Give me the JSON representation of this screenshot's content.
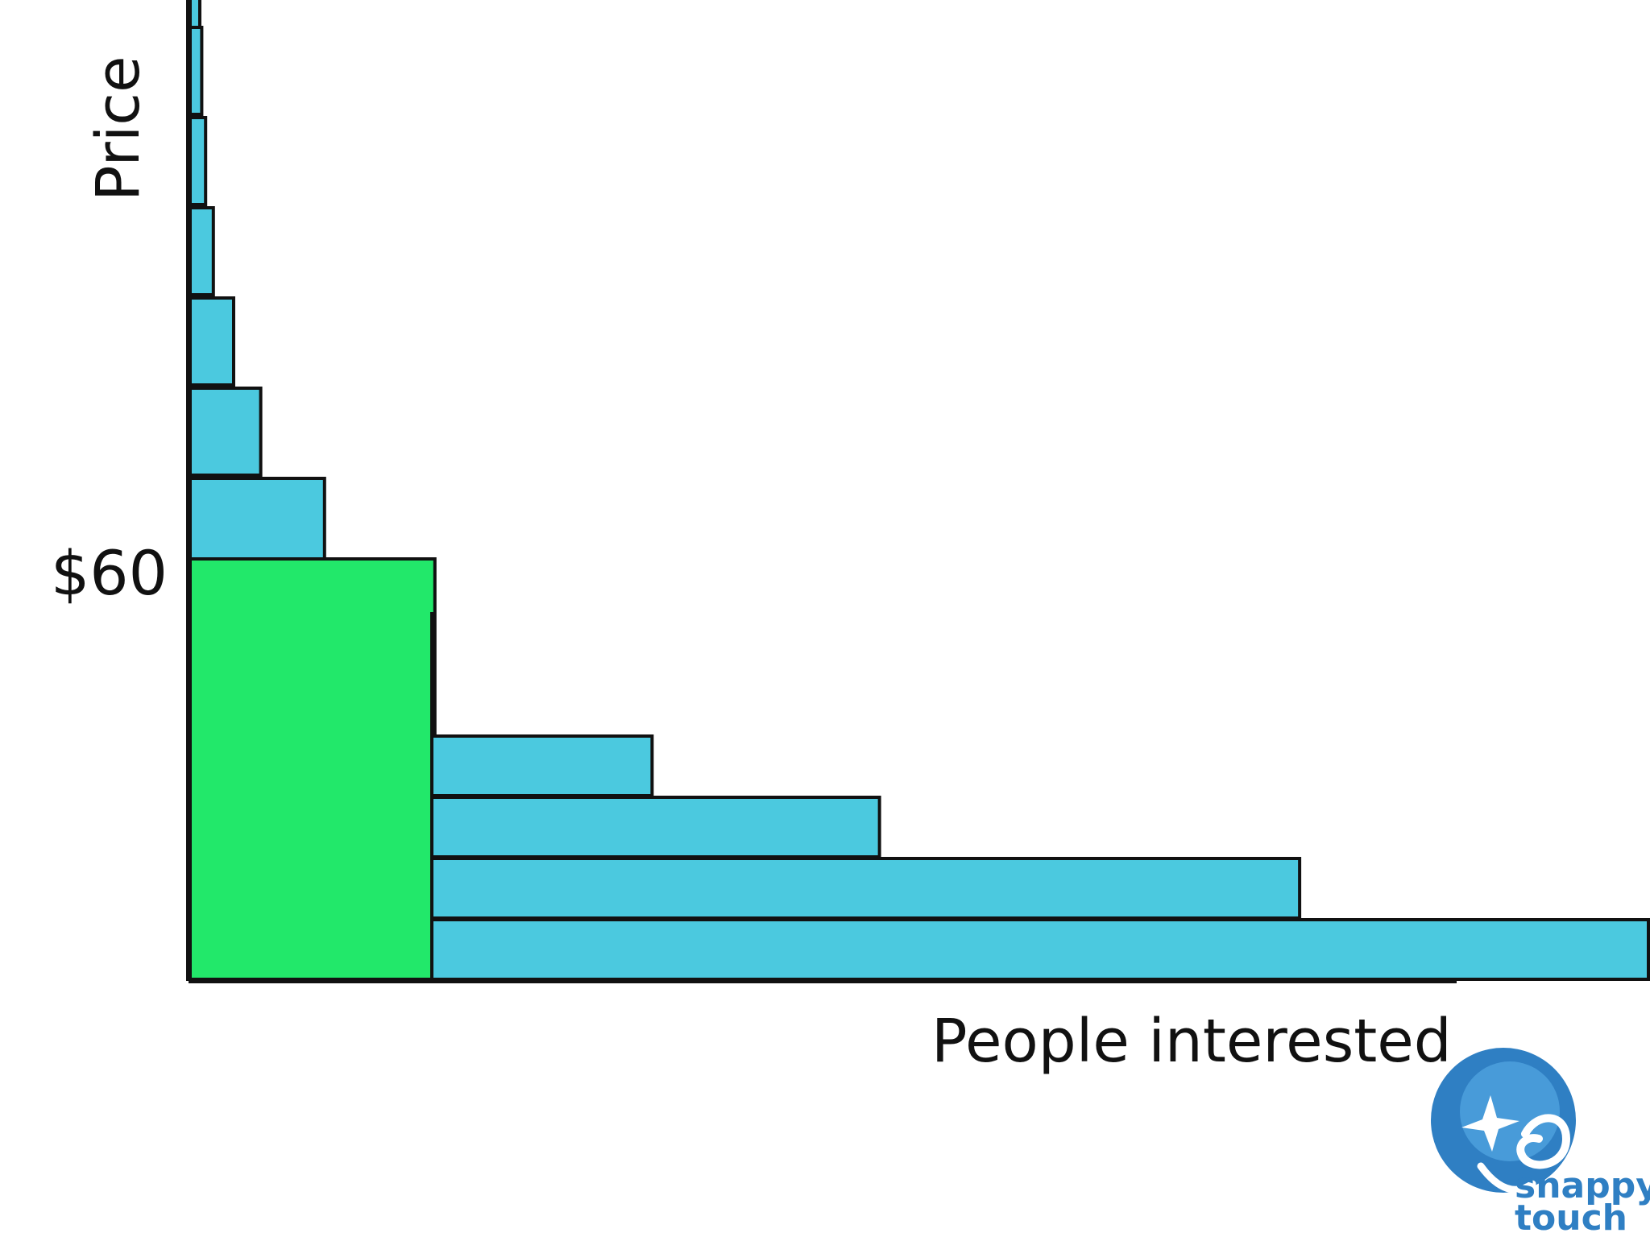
{
  "chart_data": {
    "type": "bar",
    "orientation": "horizontal",
    "title": "",
    "xlabel": "People interested",
    "ylabel": "Price",
    "price_levels_from_top": [
      1,
      2,
      3,
      4,
      5,
      6,
      7,
      8,
      9,
      10,
      11,
      12,
      13,
      14
    ],
    "values": [
      10,
      12,
      16,
      24,
      45,
      73,
      139,
      240,
      60,
      160,
      453,
      676,
      1088,
      1430
    ],
    "highlight_index": 7,
    "highlight_label": "$60",
    "ylim": [
      0,
      14
    ],
    "xlim": [
      0,
      1430
    ],
    "grid": false,
    "legend": "none"
  },
  "colors": {
    "bar": "#4bc9df",
    "highlight": "#22e86a",
    "stroke": "#111111",
    "logo": "#2f7fc3"
  },
  "logo": {
    "icon": "snappy-touch-logo-icon",
    "line1": "snappy",
    "line2": "touch"
  }
}
